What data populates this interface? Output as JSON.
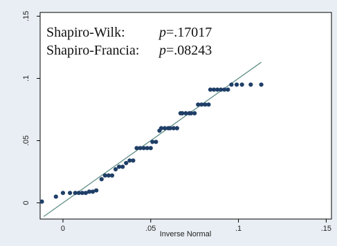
{
  "chart_data": {
    "type": "scatter",
    "xlabel": "Inverse Normal",
    "ylabel": "",
    "xlim": [
      -0.013,
      0.153
    ],
    "ylim": [
      -0.013,
      0.153
    ],
    "x_ticks": [
      {
        "value": 0,
        "label": "0"
      },
      {
        "value": 0.05,
        "label": ".05"
      },
      {
        "value": 0.1,
        "label": ".1"
      },
      {
        "value": 0.15,
        "label": ".15"
      }
    ],
    "y_ticks": [
      {
        "value": 0,
        "label": "0"
      },
      {
        "value": 0.05,
        "label": ".05"
      },
      {
        "value": 0.1,
        "label": ".1"
      },
      {
        "value": 0.15,
        "label": ".15"
      }
    ],
    "grid": false,
    "legend": "none",
    "annotations": [
      {
        "label": "Shapiro-Wilk:",
        "p_symbol": "p",
        "p_text": "=.17017"
      },
      {
        "label": "Shapiro-Francia:",
        "p_symbol": "p",
        "p_text": "=.08243"
      }
    ],
    "reference_line": {
      "from": [
        -0.011,
        -0.011
      ],
      "to": [
        0.113,
        0.113
      ],
      "color": "#5f8f86"
    },
    "series": [
      {
        "color": "#1f3f67",
        "points": [
          [
            -0.012,
            0.001
          ],
          [
            -0.004,
            0.005
          ],
          [
            0.0,
            0.008
          ],
          [
            0.004,
            0.008
          ],
          [
            0.007,
            0.008
          ],
          [
            0.009,
            0.008
          ],
          [
            0.011,
            0.008
          ],
          [
            0.013,
            0.008
          ],
          [
            0.015,
            0.009
          ],
          [
            0.017,
            0.009
          ],
          [
            0.019,
            0.01
          ],
          [
            0.022,
            0.019
          ],
          [
            0.024,
            0.022
          ],
          [
            0.026,
            0.022
          ],
          [
            0.028,
            0.022
          ],
          [
            0.03,
            0.027
          ],
          [
            0.032,
            0.029
          ],
          [
            0.034,
            0.029
          ],
          [
            0.036,
            0.032
          ],
          [
            0.038,
            0.034
          ],
          [
            0.04,
            0.034
          ],
          [
            0.042,
            0.044
          ],
          [
            0.044,
            0.044
          ],
          [
            0.046,
            0.044
          ],
          [
            0.048,
            0.044
          ],
          [
            0.05,
            0.044
          ],
          [
            0.051,
            0.049
          ],
          [
            0.053,
            0.049
          ],
          [
            0.055,
            0.058
          ],
          [
            0.056,
            0.06
          ],
          [
            0.058,
            0.06
          ],
          [
            0.06,
            0.06
          ],
          [
            0.061,
            0.06
          ],
          [
            0.063,
            0.06
          ],
          [
            0.065,
            0.06
          ],
          [
            0.067,
            0.072
          ],
          [
            0.068,
            0.072
          ],
          [
            0.07,
            0.072
          ],
          [
            0.072,
            0.072
          ],
          [
            0.073,
            0.072
          ],
          [
            0.075,
            0.072
          ],
          [
            0.077,
            0.079
          ],
          [
            0.079,
            0.079
          ],
          [
            0.081,
            0.079
          ],
          [
            0.083,
            0.079
          ],
          [
            0.084,
            0.091
          ],
          [
            0.086,
            0.091
          ],
          [
            0.088,
            0.091
          ],
          [
            0.09,
            0.091
          ],
          [
            0.092,
            0.091
          ],
          [
            0.094,
            0.091
          ],
          [
            0.096,
            0.095
          ],
          [
            0.099,
            0.095
          ],
          [
            0.102,
            0.095
          ],
          [
            0.107,
            0.095
          ],
          [
            0.113,
            0.095
          ]
        ]
      }
    ]
  }
}
